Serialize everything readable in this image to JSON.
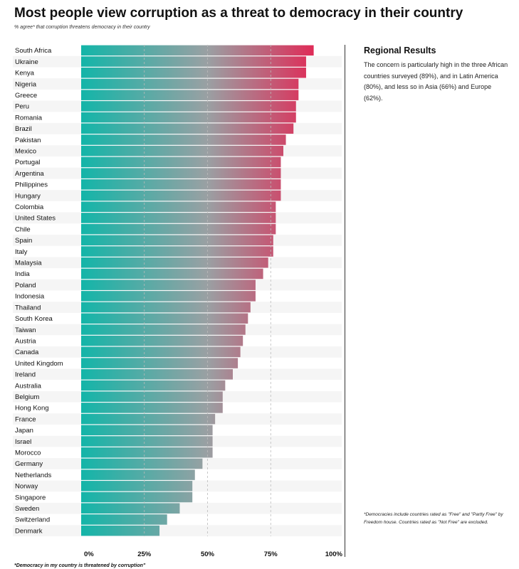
{
  "title": "Most people view corruption as a threat to democracy in their country",
  "subtitle": "% agree* that corruption threatens democracy in their country",
  "footnote_left": "*Democracy in my country is threatened by corruption\"",
  "sidebar": {
    "heading": "Regional Results",
    "body": "The concern is particularly high in the three African countries surveyed (89%), and in Latin America (80%), and less so in Asia (66%) and Europe (62%).",
    "footnote": "*Democracies include countries rated as \"Free\" and \"Partly Free\" by Freedom house. Countries rated as \"Not Free\" are excluded."
  },
  "colors": {
    "gradient_start": "#13b5a8",
    "gradient_mid": "#9aa0a3",
    "gradient_end": "#ec1549",
    "stripe": "#f5f5f5",
    "grid": "#bbbbbb"
  },
  "chart_data": {
    "type": "bar",
    "orientation": "horizontal",
    "title": "Most people view corruption as a threat to democracy in their country",
    "xlabel": "% agree",
    "ylabel": "",
    "xlim": [
      0,
      100
    ],
    "xticks": [
      0,
      25,
      50,
      75,
      100
    ],
    "xtick_labels": [
      "0%",
      "25%",
      "50%",
      "75%",
      "100%"
    ],
    "grid": "vertical dashed at 25, 50, 75",
    "categories": [
      "South Africa",
      "Ukraine",
      "Kenya",
      "Nigeria",
      "Greece",
      "Peru",
      "Romania",
      "Brazil",
      "Pakistan",
      "Mexico",
      "Portugal",
      "Argentina",
      "Philippines",
      "Hungary",
      "Colombia",
      "United States",
      "Chile",
      "Spain",
      "Italy",
      "Malaysia",
      "India",
      "Poland",
      "Indonesia",
      "Thailand",
      "South Korea",
      "Taiwan",
      "Austria",
      "Canada",
      "United Kingdom",
      "Ireland",
      "Australia",
      "Belgium",
      "Hong Kong",
      "France",
      "Japan",
      "Israel",
      "Morocco",
      "Germany",
      "Netherlands",
      "Norway",
      "Singapore",
      "Sweden",
      "Switzerland",
      "Denmark"
    ],
    "values": [
      92,
      89,
      89,
      86,
      86,
      85,
      85,
      84,
      81,
      80,
      79,
      79,
      79,
      79,
      77,
      77,
      77,
      76,
      76,
      74,
      72,
      69,
      69,
      67,
      66,
      65,
      64,
      63,
      62,
      60,
      57,
      56,
      56,
      53,
      52,
      52,
      52,
      48,
      45,
      44,
      44,
      39,
      34,
      31
    ]
  }
}
